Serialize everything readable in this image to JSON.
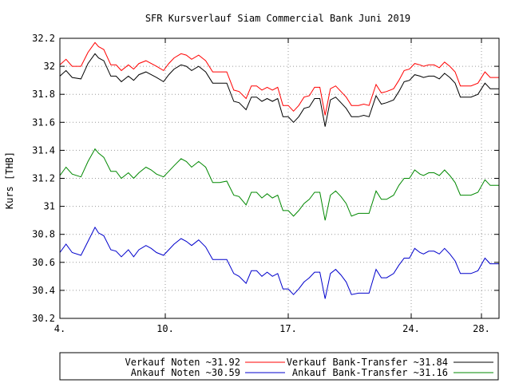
{
  "chart_data": {
    "type": "line",
    "title": "SFR Kursverlauf Siam Commercial Bank Juni 2019",
    "ylabel": "Kurs [THB]",
    "xlabel": "",
    "ylim": [
      30.2,
      32.2
    ],
    "xlim": [
      4,
      29
    ],
    "yticks": [
      "30.2",
      "30.4",
      "30.6",
      "30.8",
      "31",
      "31.2",
      "31.4",
      "31.6",
      "31.8",
      "32",
      "32.2"
    ],
    "xticks": [
      {
        "x": 4,
        "label": "4."
      },
      {
        "x": 10,
        "label": "10."
      },
      {
        "x": 17,
        "label": "17."
      },
      {
        "x": 24,
        "label": "24."
      },
      {
        "x": 28,
        "label": "28."
      }
    ],
    "grid": true,
    "legend_position": "bottom",
    "series": [
      {
        "name": "Verkauf Noten ~31.92",
        "color": "#ff0000",
        "x": [
          4.0,
          4.35,
          4.7,
          5.2,
          5.6,
          6.0,
          6.2,
          6.5,
          6.9,
          7.2,
          7.5,
          7.9,
          8.2,
          8.5,
          8.9,
          9.2,
          9.5,
          9.9,
          10.2,
          10.5,
          10.9,
          11.2,
          11.5,
          11.9,
          12.3,
          12.7,
          13.1,
          13.5,
          13.9,
          14.2,
          14.6,
          14.9,
          15.2,
          15.5,
          15.8,
          16.1,
          16.4,
          16.7,
          17.0,
          17.3,
          17.6,
          17.9,
          18.2,
          18.5,
          18.8,
          19.1,
          19.4,
          19.7,
          20.0,
          20.3,
          20.6,
          21.0,
          21.3,
          21.6,
          22.0,
          22.3,
          22.6,
          23.0,
          23.3,
          23.6,
          23.9,
          24.2,
          24.5,
          24.7,
          25.0,
          25.3,
          25.6,
          25.9,
          26.2,
          26.5,
          26.8,
          27.1,
          27.4,
          27.8,
          28.2,
          28.5,
          28.8,
          29.0
        ],
        "values": [
          32.01,
          32.05,
          32.0,
          32.0,
          32.1,
          32.17,
          32.14,
          32.12,
          32.01,
          32.01,
          31.97,
          32.01,
          31.98,
          32.02,
          32.04,
          32.02,
          32.0,
          31.97,
          32.02,
          32.06,
          32.09,
          32.08,
          32.05,
          32.08,
          32.04,
          31.96,
          31.96,
          31.96,
          31.83,
          31.82,
          31.77,
          31.86,
          31.86,
          31.83,
          31.85,
          31.83,
          31.85,
          31.72,
          31.72,
          31.68,
          31.72,
          31.78,
          31.79,
          31.85,
          31.85,
          31.65,
          31.84,
          31.86,
          31.82,
          31.78,
          31.72,
          31.72,
          31.73,
          31.72,
          31.87,
          31.81,
          31.82,
          31.84,
          31.9,
          31.97,
          31.98,
          32.02,
          32.01,
          32.0,
          32.01,
          32.01,
          31.99,
          32.03,
          32.0,
          31.96,
          31.86,
          31.86,
          31.86,
          31.88,
          31.96,
          31.92,
          31.92,
          31.92
        ]
      },
      {
        "name": "Verkauf Bank-Transfer ~31.84",
        "color": "#000000",
        "x": [
          4.0,
          4.35,
          4.7,
          5.2,
          5.6,
          6.0,
          6.2,
          6.5,
          6.9,
          7.2,
          7.5,
          7.9,
          8.2,
          8.5,
          8.9,
          9.2,
          9.5,
          9.9,
          10.2,
          10.5,
          10.9,
          11.2,
          11.5,
          11.9,
          12.3,
          12.7,
          13.1,
          13.5,
          13.9,
          14.2,
          14.6,
          14.9,
          15.2,
          15.5,
          15.8,
          16.1,
          16.4,
          16.7,
          17.0,
          17.3,
          17.6,
          17.9,
          18.2,
          18.5,
          18.8,
          19.1,
          19.4,
          19.7,
          20.0,
          20.3,
          20.6,
          21.0,
          21.3,
          21.6,
          22.0,
          22.3,
          22.6,
          23.0,
          23.3,
          23.6,
          23.9,
          24.2,
          24.5,
          24.7,
          25.0,
          25.3,
          25.6,
          25.9,
          26.2,
          26.5,
          26.8,
          27.1,
          27.4,
          27.8,
          28.2,
          28.5,
          28.8,
          29.0
        ],
        "values": [
          31.93,
          31.97,
          31.92,
          31.91,
          32.02,
          32.09,
          32.06,
          32.04,
          31.93,
          31.93,
          31.89,
          31.93,
          31.9,
          31.94,
          31.96,
          31.94,
          31.92,
          31.89,
          31.94,
          31.98,
          32.01,
          32.0,
          31.97,
          32.0,
          31.96,
          31.88,
          31.88,
          31.88,
          31.75,
          31.74,
          31.69,
          31.78,
          31.78,
          31.75,
          31.77,
          31.75,
          31.77,
          31.64,
          31.64,
          31.6,
          31.64,
          31.7,
          31.71,
          31.77,
          31.77,
          31.57,
          31.76,
          31.78,
          31.74,
          31.7,
          31.64,
          31.64,
          31.65,
          31.64,
          31.79,
          31.73,
          31.74,
          31.76,
          31.82,
          31.89,
          31.9,
          31.94,
          31.93,
          31.92,
          31.93,
          31.93,
          31.91,
          31.95,
          31.92,
          31.88,
          31.78,
          31.78,
          31.78,
          31.8,
          31.88,
          31.84,
          31.84,
          31.84
        ]
      },
      {
        "name": "Ankauf Noten ~30.59",
        "color": "#0000cc",
        "x": [
          4.0,
          4.35,
          4.7,
          5.2,
          5.6,
          6.0,
          6.2,
          6.5,
          6.9,
          7.2,
          7.5,
          7.9,
          8.2,
          8.5,
          8.9,
          9.2,
          9.5,
          9.9,
          10.2,
          10.5,
          10.9,
          11.2,
          11.5,
          11.9,
          12.3,
          12.7,
          13.1,
          13.5,
          13.9,
          14.2,
          14.6,
          14.9,
          15.2,
          15.5,
          15.8,
          16.1,
          16.4,
          16.7,
          17.0,
          17.3,
          17.6,
          17.9,
          18.2,
          18.5,
          18.8,
          19.1,
          19.4,
          19.7,
          20.0,
          20.3,
          20.6,
          21.0,
          21.3,
          21.6,
          22.0,
          22.3,
          22.6,
          23.0,
          23.3,
          23.6,
          23.9,
          24.2,
          24.5,
          24.7,
          25.0,
          25.3,
          25.6,
          25.9,
          26.2,
          26.5,
          26.8,
          27.1,
          27.4,
          27.8,
          28.2,
          28.5,
          28.8,
          29.0
        ],
        "values": [
          30.67,
          30.73,
          30.67,
          30.65,
          30.75,
          30.85,
          30.81,
          30.79,
          30.69,
          30.68,
          30.64,
          30.69,
          30.64,
          30.69,
          30.72,
          30.7,
          30.67,
          30.65,
          30.69,
          30.73,
          30.77,
          30.75,
          30.72,
          30.76,
          30.71,
          30.62,
          30.62,
          30.62,
          30.52,
          30.5,
          30.45,
          30.54,
          30.54,
          30.5,
          30.53,
          30.5,
          30.52,
          30.41,
          30.41,
          30.37,
          30.41,
          30.46,
          30.49,
          30.53,
          30.53,
          30.34,
          30.52,
          30.55,
          30.51,
          30.46,
          30.37,
          30.38,
          30.38,
          30.38,
          30.55,
          30.49,
          30.49,
          30.52,
          30.58,
          30.63,
          30.63,
          30.7,
          30.67,
          30.66,
          30.68,
          30.68,
          30.66,
          30.7,
          30.66,
          30.61,
          30.52,
          30.52,
          30.52,
          30.54,
          30.63,
          30.59,
          30.59,
          30.59
        ]
      },
      {
        "name": "Ankauf Bank-Transfer ~31.16",
        "color": "#008800",
        "x": [
          4.0,
          4.35,
          4.7,
          5.2,
          5.6,
          6.0,
          6.2,
          6.5,
          6.9,
          7.2,
          7.5,
          7.9,
          8.2,
          8.5,
          8.9,
          9.2,
          9.5,
          9.9,
          10.2,
          10.5,
          10.9,
          11.2,
          11.5,
          11.9,
          12.3,
          12.7,
          13.1,
          13.5,
          13.9,
          14.2,
          14.6,
          14.9,
          15.2,
          15.5,
          15.8,
          16.1,
          16.4,
          16.7,
          17.0,
          17.3,
          17.6,
          17.9,
          18.2,
          18.5,
          18.8,
          19.1,
          19.4,
          19.7,
          20.0,
          20.3,
          20.6,
          21.0,
          21.3,
          21.6,
          22.0,
          22.3,
          22.6,
          23.0,
          23.3,
          23.6,
          23.9,
          24.2,
          24.5,
          24.7,
          25.0,
          25.3,
          25.6,
          25.9,
          26.2,
          26.5,
          26.8,
          27.1,
          27.4,
          27.8,
          28.2,
          28.5,
          28.8,
          29.0
        ],
        "values": [
          31.22,
          31.28,
          31.23,
          31.21,
          31.32,
          31.41,
          31.38,
          31.35,
          31.25,
          31.25,
          31.2,
          31.24,
          31.2,
          31.24,
          31.28,
          31.26,
          31.23,
          31.21,
          31.25,
          31.29,
          31.34,
          31.32,
          31.28,
          31.32,
          31.28,
          31.17,
          31.17,
          31.18,
          31.08,
          31.07,
          31.01,
          31.1,
          31.1,
          31.06,
          31.09,
          31.06,
          31.08,
          30.97,
          30.97,
          30.93,
          30.97,
          31.02,
          31.05,
          31.1,
          31.1,
          30.9,
          31.08,
          31.11,
          31.07,
          31.02,
          30.93,
          30.95,
          30.95,
          30.95,
          31.11,
          31.05,
          31.05,
          31.08,
          31.15,
          31.2,
          31.2,
          31.26,
          31.23,
          31.22,
          31.24,
          31.24,
          31.22,
          31.26,
          31.22,
          31.17,
          31.08,
          31.08,
          31.08,
          31.1,
          31.19,
          31.15,
          31.15,
          31.15
        ]
      }
    ]
  }
}
